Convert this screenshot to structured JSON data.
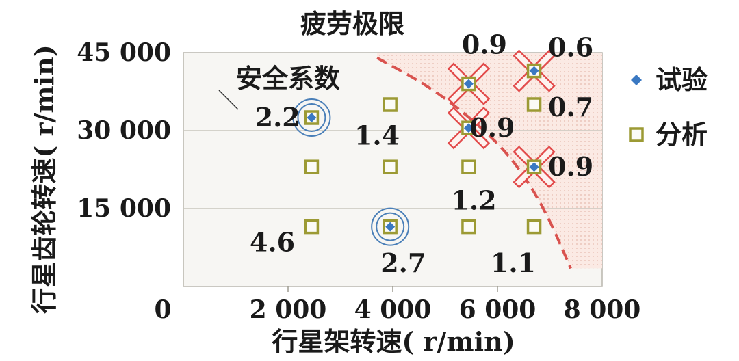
{
  "chart_data": {
    "type": "scatter",
    "title": "",
    "xlabel": "行星架转速( r/min)",
    "ylabel": "行星齿轮转速( r/min)",
    "xlim": [
      0,
      8000
    ],
    "ylim": [
      0,
      45000
    ],
    "xticks": [
      {
        "value": 0,
        "label": "0"
      },
      {
        "value": 2000,
        "label": "2 000"
      },
      {
        "value": 4000,
        "label": "4 000"
      },
      {
        "value": 6000,
        "label": "6 000"
      },
      {
        "value": 8000,
        "label": "8 000"
      }
    ],
    "yticks": [
      {
        "value": 15000,
        "label": "15 000"
      },
      {
        "value": 30000,
        "label": "30 000"
      },
      {
        "value": 45000,
        "label": "45 000"
      }
    ],
    "grid": "horizontal",
    "legend": {
      "position": "right",
      "entries": [
        {
          "name": "试验",
          "marker": "diamond",
          "color": "#3a78c2"
        },
        {
          "name": "分析",
          "marker": "square",
          "color": "#9c9a34"
        }
      ]
    },
    "series": [
      {
        "name": "分析",
        "marker": "square",
        "points": [
          {
            "x": 2450,
            "y": 11500,
            "safety_factor": "4.6"
          },
          {
            "x": 3950,
            "y": 11500,
            "safety_factor": "2.7"
          },
          {
            "x": 5450,
            "y": 11500,
            "safety_factor": "1.1"
          },
          {
            "x": 6700,
            "y": 11500,
            "safety_factor": "1.1"
          },
          {
            "x": 2450,
            "y": 23000,
            "safety_factor": ""
          },
          {
            "x": 3950,
            "y": 23000,
            "safety_factor": ""
          },
          {
            "x": 5450,
            "y": 23000,
            "safety_factor": "1.2"
          },
          {
            "x": 6700,
            "y": 23000,
            "safety_factor": "0.9"
          },
          {
            "x": 2450,
            "y": 32500,
            "safety_factor": "2.2"
          },
          {
            "x": 3950,
            "y": 35000,
            "safety_factor": "1.4"
          },
          {
            "x": 5450,
            "y": 30500,
            "safety_factor": "0.9"
          },
          {
            "x": 6700,
            "y": 35000,
            "safety_factor": "0.7"
          },
          {
            "x": 5450,
            "y": 39000,
            "safety_factor": "0.9"
          },
          {
            "x": 6700,
            "y": 41500,
            "safety_factor": "0.6"
          }
        ]
      },
      {
        "name": "试验",
        "marker": "diamond",
        "points": [
          {
            "x": 2450,
            "y": 32500
          },
          {
            "x": 3950,
            "y": 11500
          },
          {
            "x": 5450,
            "y": 30500
          },
          {
            "x": 5450,
            "y": 39000
          },
          {
            "x": 6700,
            "y": 23000
          },
          {
            "x": 6700,
            "y": 41500
          }
        ]
      }
    ],
    "safe_points": [
      {
        "x": 2450,
        "y": 32500
      },
      {
        "x": 3950,
        "y": 11500
      }
    ],
    "failed_points": [
      {
        "x": 5450,
        "y": 30500
      },
      {
        "x": 5450,
        "y": 39000
      },
      {
        "x": 6700,
        "y": 23000
      },
      {
        "x": 6700,
        "y": 41500
      }
    ],
    "fatigue_limit": {
      "label": "疲劳极限",
      "color": "#d9534f",
      "points": [
        {
          "x": 3700,
          "y": 44000
        },
        {
          "x": 4700,
          "y": 38500
        },
        {
          "x": 5600,
          "y": 31500
        },
        {
          "x": 6300,
          "y": 24500
        },
        {
          "x": 6900,
          "y": 15000
        },
        {
          "x": 7400,
          "y": 3500
        }
      ]
    },
    "annotations": [
      {
        "text": "安全系数",
        "x": 2000,
        "y": 40000
      },
      {
        "text": "2.2",
        "x": 1800,
        "y": 32500
      },
      {
        "text": "1.4",
        "x": 3700,
        "y": 29000
      },
      {
        "text": "0.9",
        "x": 5900,
        "y": 30500
      },
      {
        "text": "0.9",
        "x": 5750,
        "y": 46500
      },
      {
        "text": "0.6",
        "x": 7400,
        "y": 46000
      },
      {
        "text": "0.7",
        "x": 7400,
        "y": 34500
      },
      {
        "text": "0.9",
        "x": 7400,
        "y": 23000
      },
      {
        "text": "1.2",
        "x": 5550,
        "y": 16500
      },
      {
        "text": "4.6",
        "x": 1700,
        "y": 8500
      },
      {
        "text": "2.7",
        "x": 4200,
        "y": 4500
      },
      {
        "text": "1.1",
        "x": 6300,
        "y": 4500
      }
    ]
  }
}
